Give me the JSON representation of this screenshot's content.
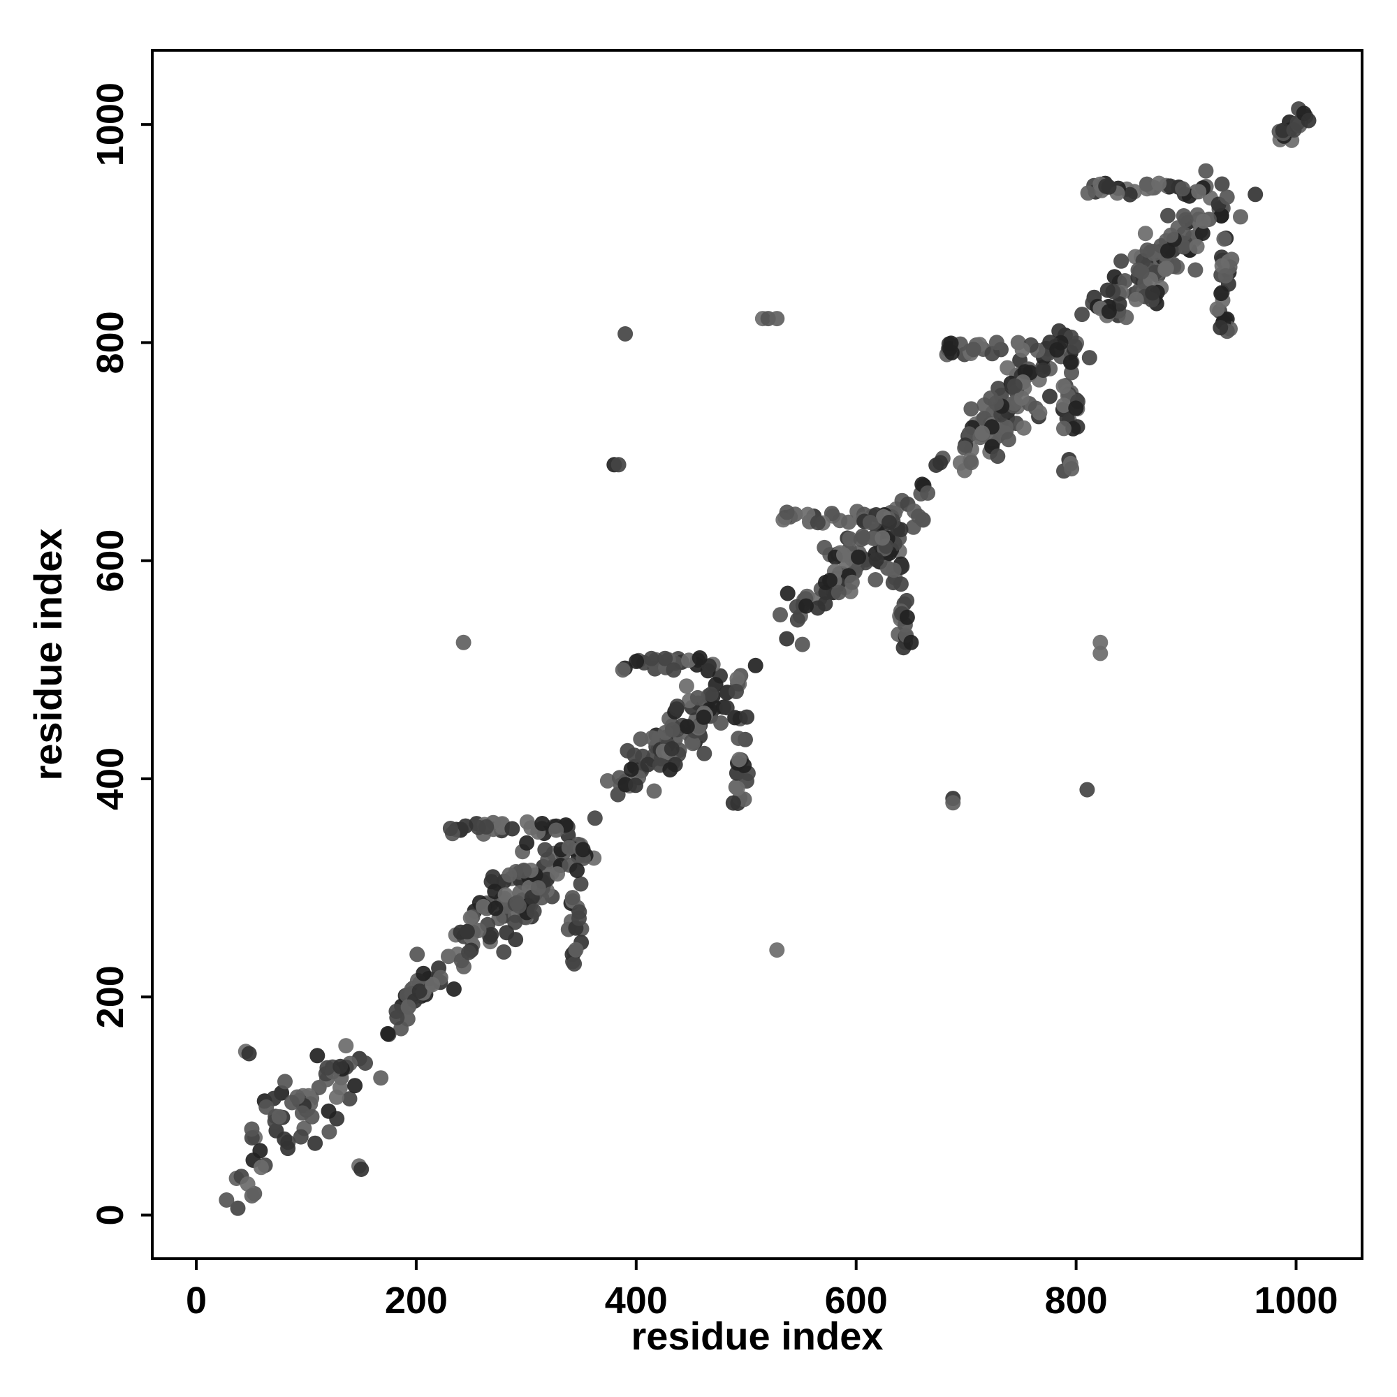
{
  "chart_data": {
    "type": "scatter",
    "xlabel": "residue index",
    "ylabel": "residue index",
    "xlim": [
      -40,
      1060
    ],
    "ylim": [
      -40,
      1068
    ],
    "xticks": [
      0,
      200,
      400,
      600,
      800,
      1000
    ],
    "yticks": [
      0,
      200,
      400,
      600,
      800,
      1000
    ],
    "grid": false,
    "legend": "none",
    "point_colors": [
      "#555555",
      "#606060",
      "#6b6b6b",
      "#444444",
      "#333333",
      "#222222"
    ],
    "clusters": [
      {
        "cx": 100,
        "cy": 100,
        "s": 55,
        "n": 70
      },
      {
        "cx": 200,
        "cy": 200,
        "s": 16,
        "n": 30
      },
      {
        "cx": 290,
        "cy": 290,
        "s": 48,
        "n": 110
      },
      {
        "cx": 440,
        "cy": 440,
        "s": 45,
        "n": 100
      },
      {
        "cx": 590,
        "cy": 590,
        "s": 48,
        "n": 100
      },
      {
        "cx": 740,
        "cy": 740,
        "s": 45,
        "n": 100
      },
      {
        "cx": 880,
        "cy": 880,
        "s": 45,
        "n": 110
      },
      {
        "cx": 1000,
        "cy": 1000,
        "s": 12,
        "n": 18
      }
    ],
    "bands": [
      {
        "x": [
          230,
          340
        ],
        "y": 355,
        "n": 30
      },
      {
        "x": [
          380,
          470
        ],
        "y": 505,
        "n": 25
      },
      {
        "x": [
          530,
          640
        ],
        "y": 640,
        "n": 30
      },
      {
        "x": [
          680,
          790
        ],
        "y": 795,
        "n": 30
      },
      {
        "x": [
          810,
          930
        ],
        "y": 940,
        "n": 30
      }
    ],
    "vbands": [
      {
        "x": 345,
        "y": [
          230,
          340
        ],
        "n": 25
      },
      {
        "x": 495,
        "y": [
          375,
          440
        ],
        "n": 15
      },
      {
        "x": 640,
        "y": [
          515,
          600
        ],
        "n": 20
      },
      {
        "x": 795,
        "y": [
          680,
          760
        ],
        "n": 20
      },
      {
        "x": 935,
        "y": [
          810,
          900
        ],
        "n": 25
      }
    ],
    "isolated_points": [
      [
        45,
        150
      ],
      [
        48,
        148
      ],
      [
        148,
        45
      ],
      [
        150,
        42
      ],
      [
        390,
        808
      ],
      [
        380,
        688
      ],
      [
        384,
        688
      ],
      [
        515,
        822
      ],
      [
        520,
        822
      ],
      [
        528,
        822
      ],
      [
        243,
        525
      ],
      [
        528,
        243
      ],
      [
        688,
        382
      ],
      [
        688,
        378
      ],
      [
        810,
        390
      ],
      [
        822,
        525
      ],
      [
        822,
        515
      ],
      [
        660,
        670
      ],
      [
        665,
        662
      ],
      [
        650,
        525
      ]
    ]
  }
}
